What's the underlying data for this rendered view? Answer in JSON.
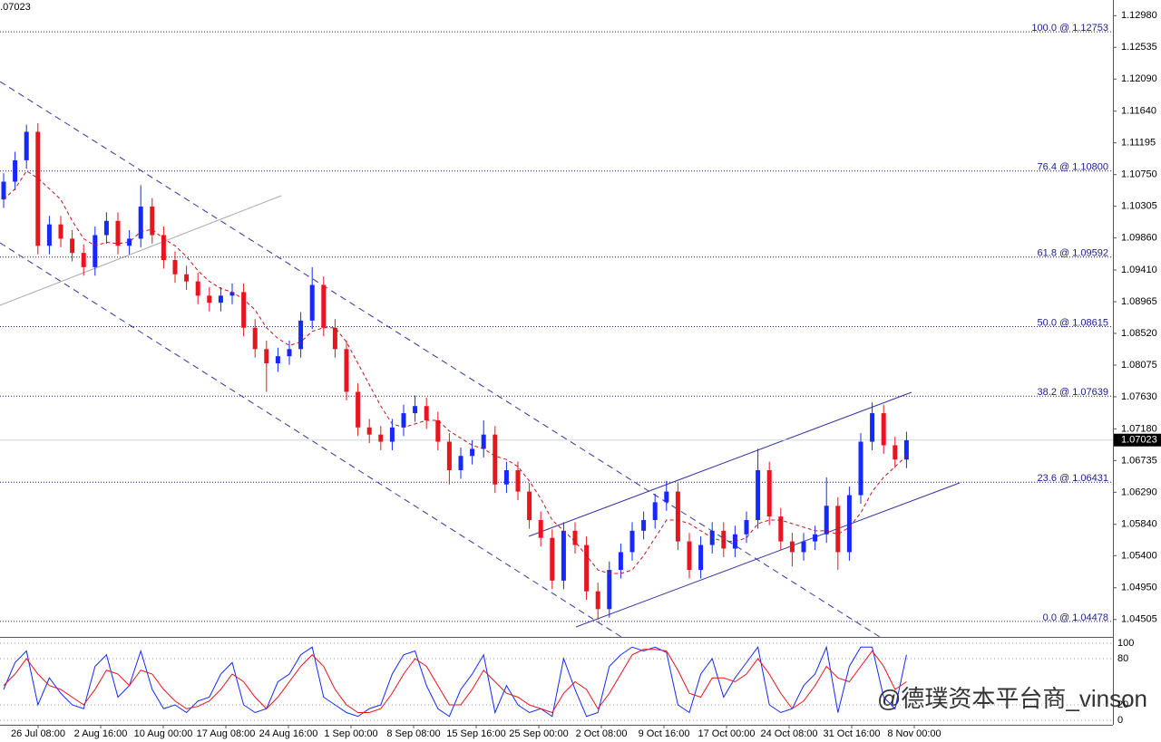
{
  "chart_data": {
    "type": "candlestick",
    "top_label": "1.07023",
    "ylim": [
      1.0426,
      1.132
    ],
    "yticks": [
      {
        "value": 1.1298,
        "label": "1.12980"
      },
      1.12535,
      {
        "value": 1.1209,
        "label": "1.12090"
      },
      {
        "value": 1.1164,
        "label": "1.11640"
      },
      1.11195,
      {
        "value": 1.1075,
        "label": "1.10750"
      },
      1.10305,
      {
        "value": 1.0986,
        "label": "1.09860"
      },
      {
        "value": 1.0941,
        "label": "1.09410"
      },
      1.08965,
      {
        "value": 1.0852,
        "label": "1.08520"
      },
      1.08075,
      {
        "value": 1.0763,
        "label": "1.07630"
      },
      {
        "value": 1.0718,
        "label": "1.07180"
      },
      1.06735,
      {
        "value": 1.0629,
        "label": "1.06290"
      },
      {
        "value": 1.0584,
        "label": "1.05840"
      },
      {
        "value": 1.054,
        "label": "1.05400"
      },
      {
        "value": 1.0495,
        "label": "1.04950"
      },
      1.04505
    ],
    "current_price": {
      "value": 1.07023,
      "label": "1.07023"
    },
    "up_color": "#1428ff",
    "down_color": "#e8141e",
    "ohlc": [
      [
        1.104,
        1.1077,
        1.1028,
        1.1065
      ],
      [
        1.1065,
        1.1107,
        1.1053,
        1.1095
      ],
      [
        1.1095,
        1.1145,
        1.1083,
        1.1135
      ],
      [
        1.1135,
        1.1147,
        1.0963,
        1.0975
      ],
      [
        1.0975,
        1.1017,
        1.0963,
        1.1005
      ],
      [
        1.1005,
        1.1017,
        1.0973,
        1.0985
      ],
      [
        1.0985,
        1.0997,
        1.0953,
        1.0965
      ],
      [
        1.0965,
        1.0977,
        1.0933,
        1.0945
      ],
      [
        1.0945,
        1.1002,
        1.0933,
        1.099
      ],
      [
        1.099,
        1.1022,
        1.0978,
        1.101
      ],
      [
        1.101,
        1.1022,
        1.0963,
        1.0975
      ],
      [
        1.0975,
        1.0997,
        1.0963,
        1.0985
      ],
      [
        1.0985,
        1.106,
        1.0973,
        1.103
      ],
      [
        1.103,
        1.1042,
        1.0978,
        1.099
      ],
      [
        1.099,
        1.1002,
        1.0943,
        1.0955
      ],
      [
        1.0955,
        1.0967,
        1.0923,
        1.0935
      ],
      [
        1.0935,
        1.0947,
        1.0913,
        1.0925
      ],
      [
        1.0925,
        1.0937,
        1.0893,
        1.0905
      ],
      [
        1.0905,
        1.0917,
        1.0883,
        1.0895
      ],
      [
        1.0895,
        1.0917,
        1.0883,
        1.0905
      ],
      [
        1.0905,
        1.0922,
        1.0893,
        1.091
      ],
      [
        1.091,
        1.0922,
        1.0848,
        1.086
      ],
      [
        1.086,
        1.0872,
        1.0818,
        1.083
      ],
      [
        1.083,
        1.0842,
        1.077,
        1.081
      ],
      [
        1.081,
        1.0832,
        1.0798,
        1.082
      ],
      [
        1.082,
        1.0842,
        1.0808,
        1.083
      ],
      [
        1.083,
        1.0882,
        1.0818,
        1.087
      ],
      [
        1.087,
        1.0945,
        1.0858,
        1.092
      ],
      [
        1.092,
        1.0932,
        1.0848,
        1.086
      ],
      [
        1.086,
        1.0872,
        1.0818,
        1.083
      ],
      [
        1.083,
        1.0842,
        1.0758,
        1.077
      ],
      [
        1.077,
        1.0782,
        1.0708,
        1.072
      ],
      [
        1.072,
        1.0732,
        1.0698,
        1.071
      ],
      [
        1.071,
        1.0722,
        1.0688,
        1.07
      ],
      [
        1.07,
        1.0732,
        1.0688,
        1.072
      ],
      [
        1.072,
        1.0752,
        1.0708,
        1.074
      ],
      [
        1.074,
        1.0765,
        1.0728,
        1.075
      ],
      [
        1.075,
        1.0762,
        1.0718,
        1.073
      ],
      [
        1.073,
        1.0742,
        1.0688,
        1.07
      ],
      [
        1.07,
        1.0712,
        1.064,
        1.066
      ],
      [
        1.066,
        1.0692,
        1.0648,
        1.068
      ],
      [
        1.068,
        1.0702,
        1.0668,
        1.069
      ],
      [
        1.069,
        1.073,
        1.0678,
        1.071
      ],
      [
        1.071,
        1.0722,
        1.0628,
        1.064
      ],
      [
        1.064,
        1.0672,
        1.0628,
        1.066
      ],
      [
        1.066,
        1.0672,
        1.0618,
        1.063
      ],
      [
        1.063,
        1.0642,
        1.0578,
        1.059
      ],
      [
        1.059,
        1.0602,
        1.0553,
        1.0565
      ],
      [
        1.0565,
        1.0577,
        1.0493,
        1.0505
      ],
      [
        1.0505,
        1.0587,
        1.0493,
        1.0575
      ],
      [
        1.0575,
        1.0587,
        1.0543,
        1.0555
      ],
      [
        1.0555,
        1.0567,
        1.0478,
        1.049
      ],
      [
        1.049,
        1.0502,
        1.045,
        1.0465
      ],
      [
        1.0465,
        1.0532,
        1.0453,
        1.052
      ],
      [
        1.052,
        1.0557,
        1.0508,
        1.0545
      ],
      [
        1.0545,
        1.0587,
        1.0533,
        1.0575
      ],
      [
        1.0575,
        1.0602,
        1.0563,
        1.059
      ],
      [
        1.059,
        1.0627,
        1.0578,
        1.0615
      ],
      [
        1.0615,
        1.0645,
        1.0603,
        1.063
      ],
      [
        1.063,
        1.0642,
        1.0548,
        1.056
      ],
      [
        1.056,
        1.0572,
        1.0508,
        1.052
      ],
      [
        1.052,
        1.0567,
        1.0508,
        1.0555
      ],
      [
        1.0555,
        1.0587,
        1.0543,
        1.0575
      ],
      [
        1.0575,
        1.0587,
        1.0538,
        1.055
      ],
      [
        1.055,
        1.0582,
        1.0538,
        1.057
      ],
      [
        1.057,
        1.0602,
        1.0558,
        1.059
      ],
      [
        1.059,
        1.069,
        1.0578,
        1.066
      ],
      [
        1.066,
        1.0672,
        1.0583,
        1.0595
      ],
      [
        1.0595,
        1.0607,
        1.0548,
        1.056
      ],
      [
        1.056,
        1.0572,
        1.0525,
        1.0545
      ],
      [
        1.0545,
        1.0572,
        1.0533,
        1.056
      ],
      [
        1.056,
        1.0582,
        1.0548,
        1.057
      ],
      [
        1.057,
        1.065,
        1.0558,
        1.061
      ],
      [
        1.061,
        1.0622,
        1.052,
        1.0545
      ],
      [
        1.0545,
        1.0637,
        1.0533,
        1.0625
      ],
      [
        1.0625,
        1.0712,
        1.0613,
        1.07
      ],
      [
        1.07,
        1.0755,
        1.0688,
        1.074
      ],
      [
        1.074,
        1.0752,
        1.0683,
        1.0695
      ],
      [
        1.0695,
        1.0707,
        1.0663,
        1.0675
      ],
      [
        1.0675,
        1.0714,
        1.0663,
        1.0702
      ]
    ],
    "ma": {
      "color": "#c0141e",
      "values": [
        1.104,
        1.1055,
        1.108,
        1.107,
        1.1055,
        1.104,
        1.101,
        1.0985,
        1.0975,
        1.098,
        1.0978,
        1.098,
        1.0995,
        1.0998,
        1.0985,
        1.0975,
        1.096,
        1.094,
        1.0925,
        1.0915,
        1.091,
        1.09,
        1.0885,
        1.086,
        1.0845,
        1.0835,
        1.084,
        1.0855,
        1.086,
        1.086,
        1.084,
        1.081,
        1.078,
        1.075,
        1.0725,
        1.072,
        1.0725,
        1.073,
        1.073,
        1.0715,
        1.0705,
        1.0695,
        1.069,
        1.068,
        1.0675,
        1.0665,
        1.0645,
        1.062,
        1.059,
        1.0575,
        1.056,
        1.054,
        1.052,
        1.0515,
        1.0515,
        1.052,
        1.054,
        1.0565,
        1.059,
        1.059,
        1.0585,
        1.0575,
        1.0565,
        1.056,
        1.056,
        1.0565,
        1.0585,
        1.059,
        1.059,
        1.0585,
        1.058,
        1.0575,
        1.0575,
        1.057,
        1.058,
        1.06,
        1.063,
        1.065,
        1.0665,
        1.068
      ]
    },
    "fib_levels": [
      {
        "label": "100.0 @ 1.12753",
        "value": 1.12753
      },
      {
        "label": "76.4 @ 1.10800",
        "value": 1.108
      },
      {
        "label": "61.8 @ 1.09592",
        "value": 1.09592
      },
      {
        "label": "50.0 @ 1.08615",
        "value": 1.08615
      },
      {
        "label": "38.2 @ 1.07639",
        "value": 1.07639
      },
      {
        "label": "23.6 @ 1.06431",
        "value": 1.06431
      },
      {
        "label": "0.0 @ 1.04478",
        "value": 1.04478
      }
    ],
    "x_labels": [
      "26 Jul 08:00",
      "2 Aug 16:00",
      "10 Aug 00:00",
      "17 Aug 08:00",
      "24 Aug 16:00",
      "1 Sep 00:00",
      "8 Sep 08:00",
      "15 Sep 16:00",
      "25 Sep 00:00",
      "2 Oct 08:00",
      "9 Oct 16:00",
      "17 Oct 00:00",
      "24 Oct 08:00",
      "31 Oct 16:00",
      "8 Nov 00:00"
    ],
    "oscillator": {
      "ylim": [
        0,
        100
      ],
      "yticks": [
        100,
        80,
        20,
        0
      ],
      "series": [
        {
          "color": "#1428ff",
          "values": [
            40,
            75,
            90,
            20,
            55,
            35,
            20,
            15,
            70,
            85,
            30,
            45,
            90,
            40,
            15,
            20,
            10,
            25,
            30,
            60,
            75,
            20,
            10,
            15,
            50,
            60,
            85,
            95,
            30,
            20,
            10,
            5,
            15,
            20,
            60,
            85,
            90,
            45,
            15,
            5,
            40,
            60,
            85,
            10,
            45,
            20,
            10,
            15,
            5,
            80,
            40,
            5,
            10,
            70,
            85,
            95,
            90,
            95,
            88,
            20,
            10,
            60,
            80,
            30,
            55,
            75,
            95,
            20,
            10,
            15,
            45,
            60,
            95,
            10,
            70,
            95,
            95,
            30,
            15,
            85
          ]
        },
        {
          "color": "#e8141e",
          "values": [
            45,
            60,
            80,
            60,
            45,
            40,
            30,
            20,
            40,
            65,
            60,
            45,
            65,
            60,
            40,
            25,
            15,
            18,
            25,
            40,
            60,
            50,
            30,
            15,
            30,
            50,
            70,
            85,
            70,
            40,
            20,
            10,
            10,
            15,
            35,
            60,
            80,
            70,
            45,
            20,
            20,
            40,
            65,
            50,
            35,
            30,
            20,
            15,
            10,
            35,
            50,
            40,
            15,
            35,
            60,
            85,
            92,
            92,
            90,
            65,
            35,
            30,
            55,
            55,
            50,
            60,
            80,
            60,
            35,
            15,
            25,
            45,
            70,
            55,
            50,
            70,
            90,
            70,
            40,
            50
          ]
        }
      ]
    },
    "watermark": "@德璞资本平台商_vinson"
  }
}
